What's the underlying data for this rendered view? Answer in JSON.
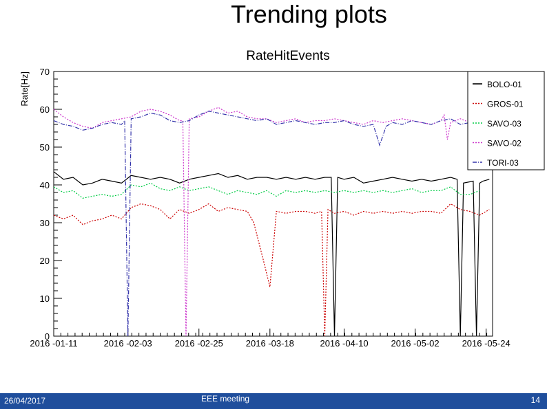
{
  "slide": {
    "title": "Trending plots"
  },
  "footer": {
    "date": "26/04/2017",
    "meeting": "EEE meeting",
    "page": "14"
  },
  "chart_data": {
    "type": "line",
    "title": "RateHitEvents",
    "xlabel": "",
    "ylabel": "Rate[Hz]",
    "xlim": [
      "2016-01-11",
      "2016-05-26"
    ],
    "ylim": [
      0,
      70
    ],
    "y_ticks": [
      0,
      10,
      20,
      30,
      40,
      50,
      60,
      70
    ],
    "x_tick_labels": [
      "2016 -01-11",
      "2016 -02-03",
      "2016 -02-25",
      "2016 -03-18",
      "2016 -04-10",
      "2016 -05-02",
      "2016 -05-24"
    ],
    "x_tick_dates": [
      "2016-01-11",
      "2016-02-03",
      "2016-02-25",
      "2016-03-18",
      "2016-04-10",
      "2016-05-02",
      "2016-05-24"
    ],
    "legend_position": "top-right",
    "grid": false,
    "series": [
      {
        "name": "BOLO-01",
        "color": "#000000",
        "dash": "solid",
        "x": [
          "2016-01-11",
          "2016-01-14",
          "2016-01-17",
          "2016-01-20",
          "2016-01-23",
          "2016-01-26",
          "2016-01-29",
          "2016-02-01",
          "2016-02-04",
          "2016-02-07",
          "2016-02-10",
          "2016-02-13",
          "2016-02-16",
          "2016-02-19",
          "2016-02-22",
          "2016-02-25",
          "2016-02-28",
          "2016-03-02",
          "2016-03-05",
          "2016-03-08",
          "2016-03-11",
          "2016-03-14",
          "2016-03-17",
          "2016-03-20",
          "2016-03-23",
          "2016-03-26",
          "2016-03-29",
          "2016-04-01",
          "2016-04-04",
          "2016-04-06",
          "2016-04-07",
          "2016-04-08",
          "2016-04-10",
          "2016-04-13",
          "2016-04-16",
          "2016-04-19",
          "2016-04-22",
          "2016-04-25",
          "2016-04-28",
          "2016-05-01",
          "2016-05-04",
          "2016-05-07",
          "2016-05-10",
          "2016-05-13",
          "2016-05-15",
          "2016-05-16",
          "2016-05-17",
          "2016-05-20",
          "2016-05-21",
          "2016-05-22",
          "2016-05-23",
          "2016-05-25"
        ],
        "y": [
          43.5,
          41.5,
          42,
          40,
          40.5,
          41.5,
          41,
          40.5,
          42.5,
          42,
          41.5,
          42,
          41.5,
          40.5,
          41.5,
          42,
          42.5,
          43,
          42,
          42.5,
          41.5,
          42,
          42,
          41.5,
          42,
          41.5,
          42,
          41.5,
          42,
          42,
          0,
          42,
          41.5,
          42,
          40.5,
          41,
          41.5,
          42,
          41.5,
          41,
          41.5,
          41,
          41.5,
          42,
          41.5,
          0,
          40.5,
          41,
          0,
          40.5,
          41,
          41.5
        ]
      },
      {
        "name": "GROS-01",
        "color": "#cc0000",
        "dash": "dot",
        "x": [
          "2016-01-11",
          "2016-01-14",
          "2016-01-17",
          "2016-01-20",
          "2016-01-23",
          "2016-01-26",
          "2016-01-29",
          "2016-02-01",
          "2016-02-04",
          "2016-02-07",
          "2016-02-10",
          "2016-02-13",
          "2016-02-16",
          "2016-02-19",
          "2016-02-22",
          "2016-02-25",
          "2016-02-28",
          "2016-03-02",
          "2016-03-05",
          "2016-03-08",
          "2016-03-11",
          "2016-03-13",
          "2016-03-16",
          "2016-03-18",
          "2016-03-20",
          "2016-03-23",
          "2016-03-26",
          "2016-03-29",
          "2016-04-01",
          "2016-04-03",
          "2016-04-04",
          "2016-04-05",
          "2016-04-07",
          "2016-04-10",
          "2016-04-13",
          "2016-04-16",
          "2016-04-19",
          "2016-04-22",
          "2016-04-25",
          "2016-04-28",
          "2016-05-01",
          "2016-05-04",
          "2016-05-07",
          "2016-05-10",
          "2016-05-13",
          "2016-05-16",
          "2016-05-19",
          "2016-05-22",
          "2016-05-25"
        ],
        "y": [
          32,
          31,
          32,
          29.5,
          30.5,
          31,
          32,
          31,
          34,
          35,
          34.5,
          33.5,
          31,
          33.5,
          32.5,
          33.5,
          35,
          33,
          34,
          33.5,
          33,
          30,
          20,
          13,
          33,
          32.5,
          33,
          33,
          32.5,
          33,
          0,
          33.5,
          32.5,
          33,
          32,
          33,
          32.5,
          33,
          32.5,
          33,
          32.5,
          33,
          33,
          32.5,
          35,
          33.5,
          33,
          32,
          33.5
        ]
      },
      {
        "name": "SAVO-03",
        "color": "#00cc44",
        "dash": "dot",
        "x": [
          "2016-01-11",
          "2016-01-14",
          "2016-01-17",
          "2016-01-20",
          "2016-01-23",
          "2016-01-26",
          "2016-01-29",
          "2016-02-01",
          "2016-02-04",
          "2016-02-07",
          "2016-02-10",
          "2016-02-13",
          "2016-02-16",
          "2016-02-19",
          "2016-02-22",
          "2016-02-25",
          "2016-02-28",
          "2016-03-02",
          "2016-03-05",
          "2016-03-08",
          "2016-03-11",
          "2016-03-14",
          "2016-03-17",
          "2016-03-20",
          "2016-03-23",
          "2016-03-26",
          "2016-03-29",
          "2016-04-01",
          "2016-04-04",
          "2016-04-07",
          "2016-04-10",
          "2016-04-13",
          "2016-04-16",
          "2016-04-19",
          "2016-04-22",
          "2016-04-25",
          "2016-04-28",
          "2016-05-01",
          "2016-05-04",
          "2016-05-07",
          "2016-05-10",
          "2016-05-13",
          "2016-05-16",
          "2016-05-19",
          "2016-05-22"
        ],
        "y": [
          39.5,
          38,
          38.5,
          36.5,
          37,
          37.5,
          37,
          37.5,
          40,
          39.5,
          40.5,
          39,
          38.5,
          39.5,
          38.5,
          39,
          39.5,
          38.5,
          37.5,
          38.5,
          38,
          37.5,
          38.5,
          37,
          38.5,
          38,
          38.5,
          38,
          38.5,
          38,
          38.5,
          38,
          38.5,
          38,
          38.5,
          38,
          38.5,
          39,
          38,
          38.5,
          38.5,
          39.5,
          37.5,
          37.5,
          38.5
        ]
      },
      {
        "name": "SAVO-02",
        "color": "#cc33cc",
        "dash": "dot",
        "x": [
          "2016-01-11",
          "2016-01-14",
          "2016-01-17",
          "2016-01-20",
          "2016-01-23",
          "2016-01-26",
          "2016-01-29",
          "2016-02-01",
          "2016-02-04",
          "2016-02-07",
          "2016-02-10",
          "2016-02-13",
          "2016-02-16",
          "2016-02-19",
          "2016-02-20",
          "2016-02-21",
          "2016-02-22",
          "2016-02-25",
          "2016-02-28",
          "2016-03-02",
          "2016-03-05",
          "2016-03-08",
          "2016-03-11",
          "2016-03-14",
          "2016-03-17",
          "2016-03-20",
          "2016-03-23",
          "2016-03-26",
          "2016-03-29",
          "2016-04-01",
          "2016-04-04",
          "2016-04-07",
          "2016-04-10",
          "2016-04-13",
          "2016-04-16",
          "2016-04-19",
          "2016-04-22",
          "2016-04-25",
          "2016-04-28",
          "2016-05-01",
          "2016-05-04",
          "2016-05-07",
          "2016-05-10",
          "2016-05-11",
          "2016-05-12",
          "2016-05-13",
          "2016-05-16",
          "2016-05-19",
          "2016-05-22"
        ],
        "y": [
          60,
          58,
          56.5,
          55.5,
          55,
          56.5,
          57,
          57.5,
          58,
          59.5,
          60,
          59.5,
          58.5,
          57,
          57,
          0,
          57.5,
          58,
          59.5,
          60.5,
          59,
          59.5,
          58,
          57.5,
          57.5,
          56.5,
          57,
          57.5,
          56.5,
          57,
          57,
          57.5,
          57,
          56.5,
          56,
          57,
          56.5,
          57,
          57.5,
          57,
          56.5,
          56,
          57,
          58.5,
          52,
          56.5,
          57.5,
          56.5,
          57
        ]
      },
      {
        "name": "TORI-03",
        "color": "#3333aa",
        "dash": "dashdot",
        "x": [
          "2016-01-11",
          "2016-01-14",
          "2016-01-17",
          "2016-01-20",
          "2016-01-23",
          "2016-01-26",
          "2016-01-29",
          "2016-02-01",
          "2016-02-02",
          "2016-02-03",
          "2016-02-04",
          "2016-02-07",
          "2016-02-10",
          "2016-02-13",
          "2016-02-16",
          "2016-02-19",
          "2016-02-22",
          "2016-02-25",
          "2016-02-28",
          "2016-03-02",
          "2016-03-05",
          "2016-03-08",
          "2016-03-11",
          "2016-03-14",
          "2016-03-17",
          "2016-03-20",
          "2016-03-23",
          "2016-03-26",
          "2016-03-29",
          "2016-04-01",
          "2016-04-04",
          "2016-04-07",
          "2016-04-10",
          "2016-04-13",
          "2016-04-16",
          "2016-04-19",
          "2016-04-21",
          "2016-04-23",
          "2016-04-25",
          "2016-04-28",
          "2016-05-01",
          "2016-05-04",
          "2016-05-07",
          "2016-05-10",
          "2016-05-13",
          "2016-05-16",
          "2016-05-19",
          "2016-05-22"
        ],
        "y": [
          57,
          56,
          55.5,
          54.5,
          55,
          56,
          56.5,
          56,
          57,
          0,
          57.5,
          58,
          59,
          58.5,
          57,
          56.5,
          57,
          58.5,
          59.5,
          59,
          58.5,
          58,
          57.5,
          57,
          57.5,
          56,
          56.5,
          57,
          56.5,
          56,
          56.5,
          56.5,
          57,
          56,
          55.5,
          56,
          50.5,
          55.5,
          56.5,
          56,
          57,
          56.5,
          56,
          57,
          57.5,
          56,
          56.5,
          57
        ]
      }
    ]
  }
}
